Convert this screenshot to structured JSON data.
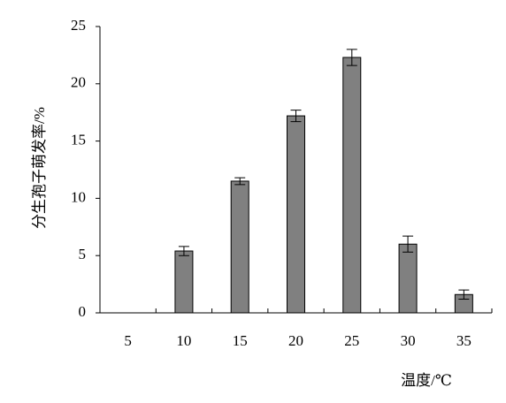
{
  "chart_data": {
    "type": "bar",
    "ylabel": "分生孢子萌发率/%",
    "xlabel": "温度/℃",
    "categories": [
      "5",
      "10",
      "15",
      "20",
      "25",
      "30",
      "35"
    ],
    "values": [
      0,
      5.4,
      11.5,
      17.2,
      22.3,
      6.0,
      1.6
    ],
    "errors": [
      0,
      0.4,
      0.3,
      0.5,
      0.7,
      0.7,
      0.4
    ],
    "color": "#808080",
    "ylim": [
      0,
      25
    ],
    "yticks": [
      0,
      5,
      10,
      15,
      20,
      25
    ],
    "grid": false
  }
}
